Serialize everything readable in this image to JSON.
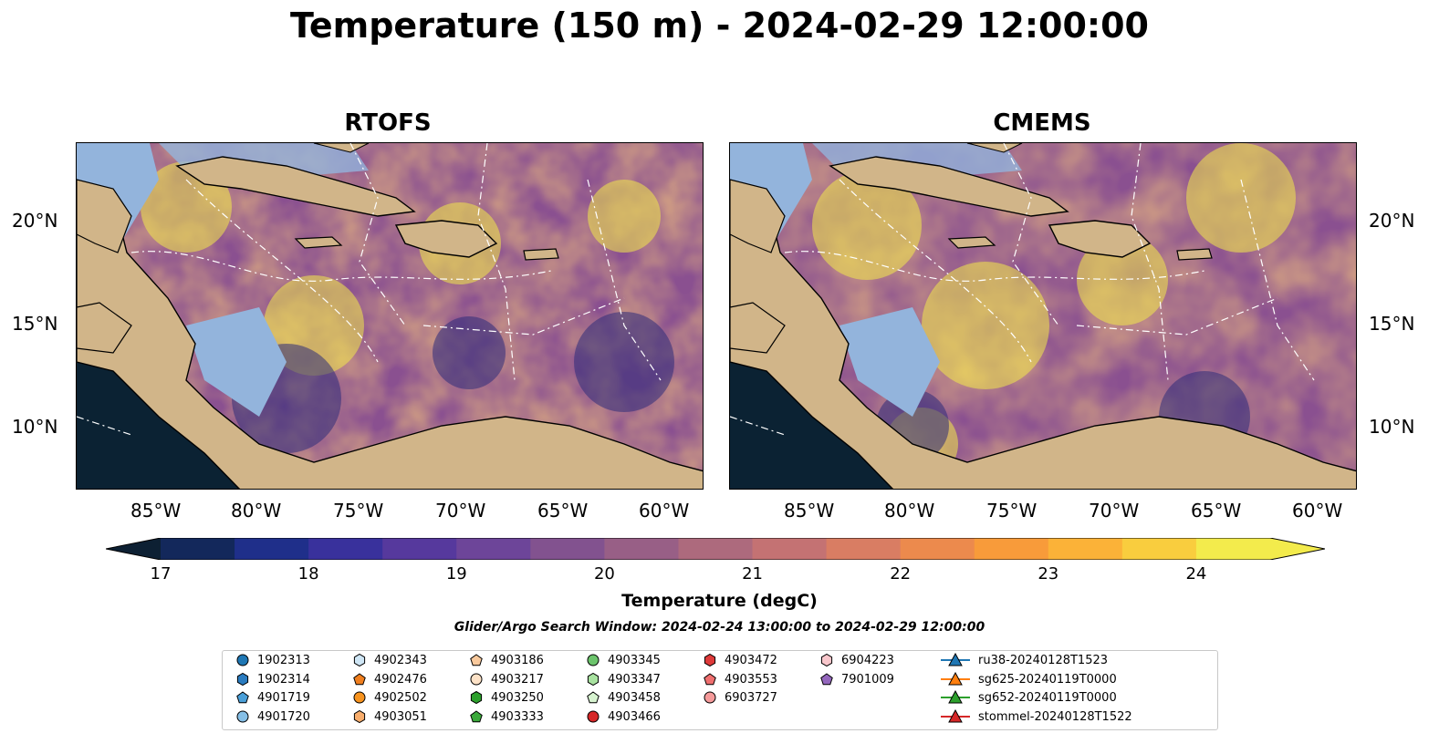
{
  "title": "Temperature (150 m) - 2024-02-29 12:00:00",
  "panels": [
    {
      "title": "RTOFS"
    },
    {
      "title": "CMEMS"
    }
  ],
  "lat_labels": [
    "20°N",
    "15°N",
    "10°N"
  ],
  "lon_labels": [
    "85°W",
    "80°W",
    "75°W",
    "70°W",
    "65°W",
    "60°W"
  ],
  "colorbar": {
    "title": "Temperature (degC)",
    "ticks": [
      "17",
      "18",
      "19",
      "20",
      "21",
      "22",
      "23",
      "24"
    ],
    "min": 16.75,
    "max": 24.5,
    "extend": "both",
    "colors": [
      "#0d2033",
      "#13285b",
      "#1f2f8a",
      "#39319c",
      "#56399d",
      "#6d4599",
      "#82528f",
      "#985f86",
      "#ad6a7d",
      "#c47273",
      "#d97d63",
      "#ec8a4d",
      "#f89b3a",
      "#fbb238",
      "#f9cd3e",
      "#f3eb4c"
    ]
  },
  "search_window": "Glider/Argo Search Window: 2024-02-24 13:00:00 to 2024-02-29 12:00:00",
  "legend": {
    "items": [
      {
        "label": "1902313",
        "marker": "circle",
        "color": "#1f77b4"
      },
      {
        "label": "1902314",
        "marker": "hexagon",
        "color": "#2a7bbf"
      },
      {
        "label": "4901719",
        "marker": "pentagon",
        "color": "#4a9fd8"
      },
      {
        "label": "4901720",
        "marker": "circle",
        "color": "#86bfe6"
      },
      {
        "label": "4902343",
        "marker": "hexagon",
        "color": "#cfe6f5"
      },
      {
        "label": "4902476",
        "marker": "pentagon",
        "color": "#f07f1f"
      },
      {
        "label": "4902502",
        "marker": "circle",
        "color": "#f7931e"
      },
      {
        "label": "4903051",
        "marker": "hexagon",
        "color": "#f8ad6c"
      },
      {
        "label": "4903186",
        "marker": "pentagon",
        "color": "#f9c99c"
      },
      {
        "label": "4903217",
        "marker": "circle",
        "color": "#fde2c7"
      },
      {
        "label": "4903250",
        "marker": "hexagon",
        "color": "#2ca02c"
      },
      {
        "label": "4903333",
        "marker": "pentagon",
        "color": "#3aa83a"
      },
      {
        "label": "4903345",
        "marker": "circle",
        "color": "#6cc46c"
      },
      {
        "label": "4903347",
        "marker": "hexagon",
        "color": "#a8e2a0"
      },
      {
        "label": "4903458",
        "marker": "pentagon",
        "color": "#d6f2cf"
      },
      {
        "label": "4903466",
        "marker": "circle",
        "color": "#d62728"
      },
      {
        "label": "4903472",
        "marker": "hexagon",
        "color": "#de3a3a"
      },
      {
        "label": "4903553",
        "marker": "pentagon",
        "color": "#ef6f6f"
      },
      {
        "label": "6903727",
        "marker": "circle",
        "color": "#f59a9a"
      },
      {
        "label": "6904223",
        "marker": "hexagon",
        "color": "#f9c7cc"
      },
      {
        "label": "7901009",
        "marker": "pentagon",
        "color": "#9467bd"
      },
      {
        "label": "ru38-20240128T1523",
        "marker": "triangle-line",
        "color": "#1f77b4"
      },
      {
        "label": "sg625-20240119T0000",
        "marker": "triangle-line",
        "color": "#ff7f0e"
      },
      {
        "label": "sg652-20240119T0000",
        "marker": "triangle-line",
        "color": "#2ca02c"
      },
      {
        "label": "stommel-20240128T1522",
        "marker": "triangle-line",
        "color": "#d62728"
      }
    ]
  }
}
